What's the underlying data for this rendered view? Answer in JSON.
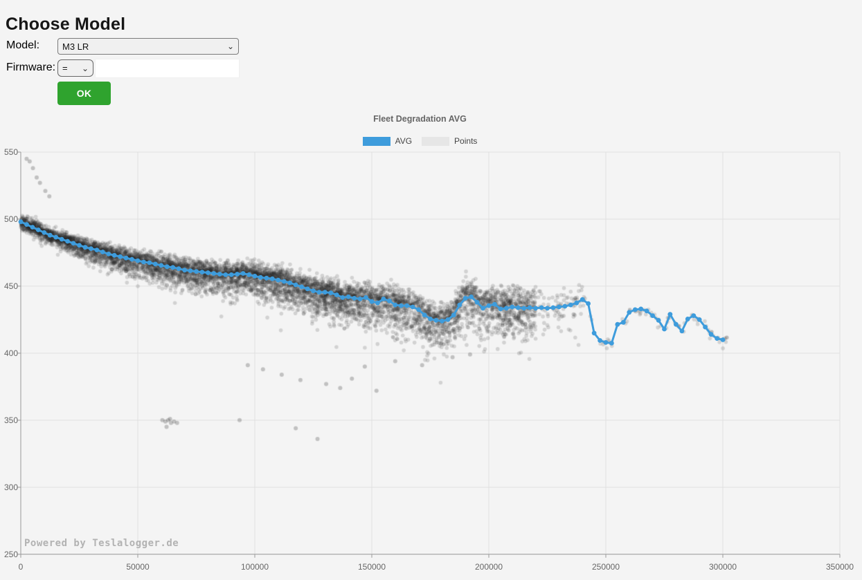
{
  "page": {
    "title": "Choose Model",
    "background": "#f4f4f4"
  },
  "form": {
    "model_label": "Model:",
    "model_value": "M3 LR",
    "firmware_label": "Firmware:",
    "firmware_operator": "=",
    "firmware_value": "",
    "ok_label": "OK",
    "chevron_icon": "⌄",
    "ok_color": "#2fa32e"
  },
  "chart": {
    "title": "Fleet Degradation AVG",
    "legend": [
      {
        "label": "AVG",
        "color": "#3E9CDC"
      },
      {
        "label": "Points",
        "color": "#E6E6E6"
      }
    ],
    "watermark": "Powered by Teslalogger.de"
  },
  "chart_data": {
    "type": "scatter",
    "title": "Fleet Degradation AVG",
    "xlabel": "",
    "ylabel": "",
    "xlim": [
      0,
      350000
    ],
    "ylim": [
      250,
      550
    ],
    "x_ticks": [
      0,
      50000,
      100000,
      150000,
      200000,
      250000,
      300000,
      350000
    ],
    "y_ticks": [
      550,
      500,
      450,
      400,
      350,
      300,
      250
    ],
    "grid": true,
    "legend_position": "top-center",
    "avg_series": {
      "name": "AVG",
      "color": "#3E9CDC",
      "x_start": 0,
      "x_step": 2500,
      "values": [
        498,
        496,
        494,
        492,
        490,
        488,
        486.5,
        485,
        483.5,
        482,
        480.5,
        479,
        478,
        477,
        475.5,
        474,
        473,
        472,
        471,
        470,
        469,
        468,
        467.5,
        466.5,
        465.5,
        464.5,
        464,
        463,
        462,
        461.5,
        461,
        460.5,
        460,
        459.5,
        459,
        458.5,
        458.5,
        459,
        459.5,
        458.5,
        457.5,
        456.5,
        456,
        455.5,
        454.5,
        453.5,
        452.5,
        451,
        449.5,
        448,
        446.5,
        445.5,
        445.5,
        445,
        443.5,
        441.5,
        442,
        441,
        440.5,
        441.5,
        438.5,
        437.5,
        440.5,
        439,
        436,
        435.5,
        435.5,
        434.5,
        432.5,
        428.5,
        425.5,
        424.5,
        424,
        425,
        428.5,
        436,
        441,
        442,
        438,
        433.5,
        435.5,
        436.5,
        433,
        433.5,
        434.5,
        434,
        433.5,
        434,
        433.5,
        434,
        433.5,
        434,
        434.5,
        435,
        436,
        437.5,
        440,
        437,
        415,
        409.5,
        408,
        407.5,
        421.5,
        423,
        430.5,
        432.5,
        433,
        431.5,
        428,
        424.5,
        418,
        429,
        421.5,
        416.5,
        425.5,
        428,
        425,
        419.5,
        414,
        411,
        410
      ]
    },
    "points_series": {
      "name": "Points",
      "color": "rgba(35,35,35,0.16)",
      "style": "dense-cloud",
      "count": 7200,
      "seed": 1337,
      "band_note": "cloud of per-car readings centered on AVG line, widening downward with mileage, dense 0-200000 km, sparse beyond 240000 km",
      "outliers": [
        [
          2500,
          545
        ],
        [
          3800,
          543
        ],
        [
          5200,
          538
        ],
        [
          6800,
          531
        ],
        [
          8200,
          527
        ],
        [
          10500,
          521
        ],
        [
          12200,
          517
        ],
        [
          60500,
          350
        ],
        [
          61800,
          349
        ],
        [
          63000,
          350
        ],
        [
          64200,
          348
        ],
        [
          65500,
          349
        ],
        [
          66800,
          348
        ],
        [
          62300,
          345
        ],
        [
          63800,
          351
        ],
        [
          93500,
          350
        ],
        [
          117500,
          344
        ],
        [
          126800,
          336
        ],
        [
          97000,
          391
        ],
        [
          103500,
          388
        ],
        [
          111500,
          384
        ],
        [
          119500,
          380
        ],
        [
          130500,
          377
        ],
        [
          136500,
          374
        ],
        [
          141500,
          381
        ],
        [
          147000,
          390
        ],
        [
          152000,
          372
        ],
        [
          160000,
          394
        ],
        [
          171500,
          391
        ],
        [
          184500,
          397
        ],
        [
          192000,
          399
        ]
      ]
    }
  }
}
